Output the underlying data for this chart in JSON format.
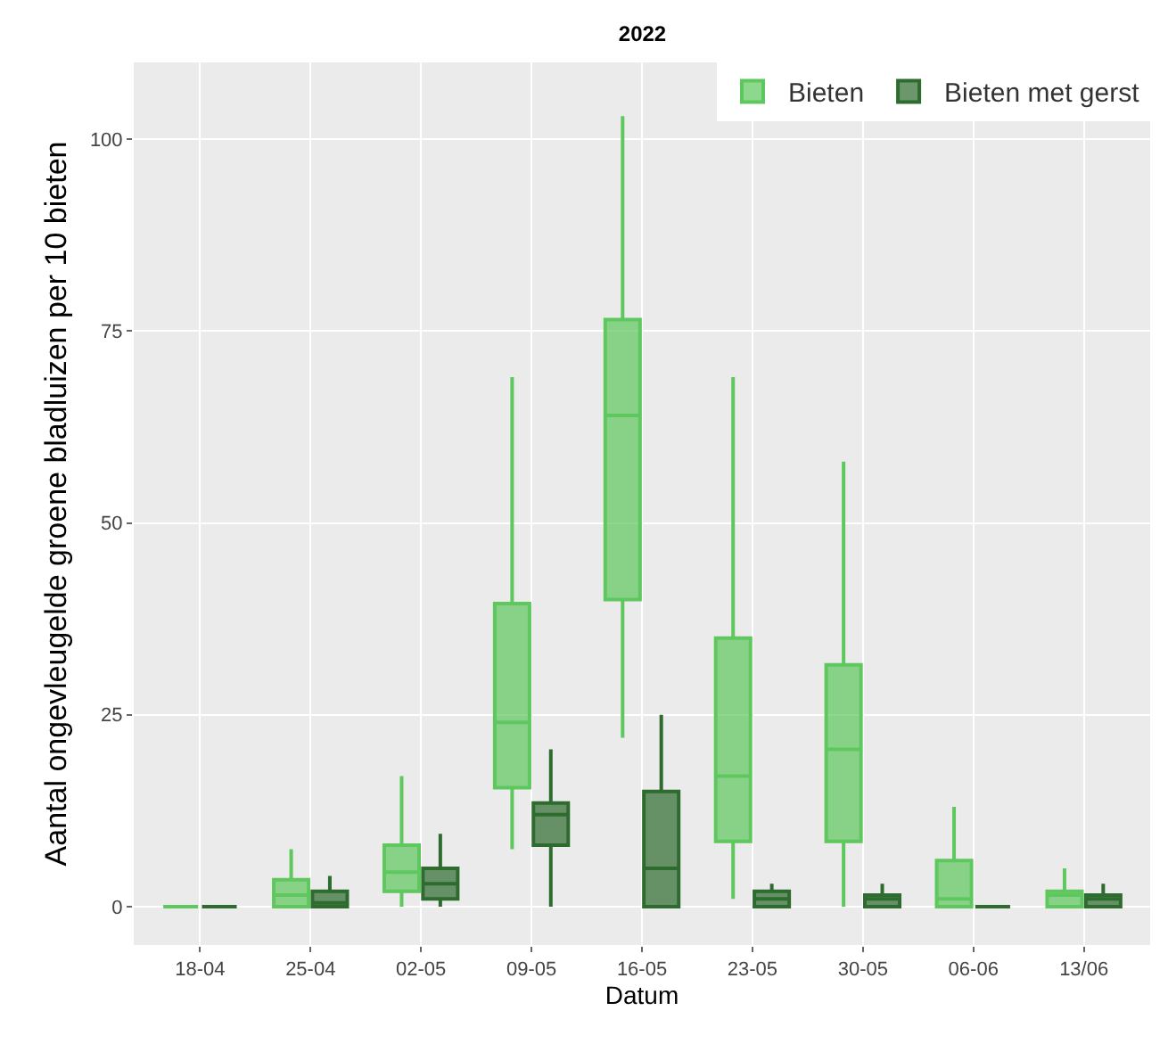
{
  "chart_data": {
    "type": "box",
    "title": "2022",
    "xlabel": "Datum",
    "ylabel": "Aantal ongevleugelde groene bladluizen per 10 bieten",
    "categories": [
      "18-04",
      "25-04",
      "02-05",
      "09-05",
      "16-05",
      "23-05",
      "30-05",
      "06-06",
      "13/06"
    ],
    "ylim": [
      -5,
      110
    ],
    "yticks": [
      0,
      25,
      50,
      75,
      100
    ],
    "grid": true,
    "legend": "top right",
    "series": [
      {
        "name": "Bieten",
        "color": "#5ec85e",
        "boxes": [
          {
            "low": 0,
            "q1": 0,
            "median": 0,
            "q3": 0,
            "high": 0
          },
          {
            "low": 0,
            "q1": 0,
            "median": 1.5,
            "q3": 3.5,
            "high": 7.5
          },
          {
            "low": 0,
            "q1": 2,
            "median": 4.5,
            "q3": 8,
            "high": 17
          },
          {
            "low": 7.5,
            "q1": 15.5,
            "median": 24,
            "q3": 39.5,
            "high": 69
          },
          {
            "low": 22,
            "q1": 40,
            "median": 64,
            "q3": 76.5,
            "high": 103
          },
          {
            "low": 1,
            "q1": 8.5,
            "median": 17,
            "q3": 35,
            "high": 69
          },
          {
            "low": 0,
            "q1": 8.5,
            "median": 20.5,
            "q3": 31.5,
            "high": 58
          },
          {
            "low": 0,
            "q1": 0,
            "median": 1,
            "q3": 6,
            "high": 13
          },
          {
            "low": 0,
            "q1": 0,
            "median": 1.5,
            "q3": 2,
            "high": 5
          }
        ]
      },
      {
        "name": "Bieten met gerst",
        "color": "#2e6b2e",
        "boxes": [
          {
            "low": 0,
            "q1": 0,
            "median": 0,
            "q3": 0,
            "high": 0
          },
          {
            "low": 0,
            "q1": 0,
            "median": 0.5,
            "q3": 2,
            "high": 4
          },
          {
            "low": 0,
            "q1": 1,
            "median": 3,
            "q3": 5,
            "high": 9.5
          },
          {
            "low": 0,
            "q1": 8,
            "median": 12,
            "q3": 13.5,
            "high": 20.5
          },
          {
            "low": 0,
            "q1": 0,
            "median": 5,
            "q3": 15,
            "high": 25
          },
          {
            "low": 0,
            "q1": 0,
            "median": 1,
            "q3": 2,
            "high": 3
          },
          {
            "low": 0,
            "q1": 0,
            "median": 1,
            "q3": 1.5,
            "high": 3
          },
          {
            "low": 0,
            "q1": 0,
            "median": 0,
            "q3": 0,
            "high": 0
          },
          {
            "low": 0,
            "q1": 0,
            "median": 1,
            "q3": 1.5,
            "high": 3
          }
        ]
      }
    ]
  }
}
